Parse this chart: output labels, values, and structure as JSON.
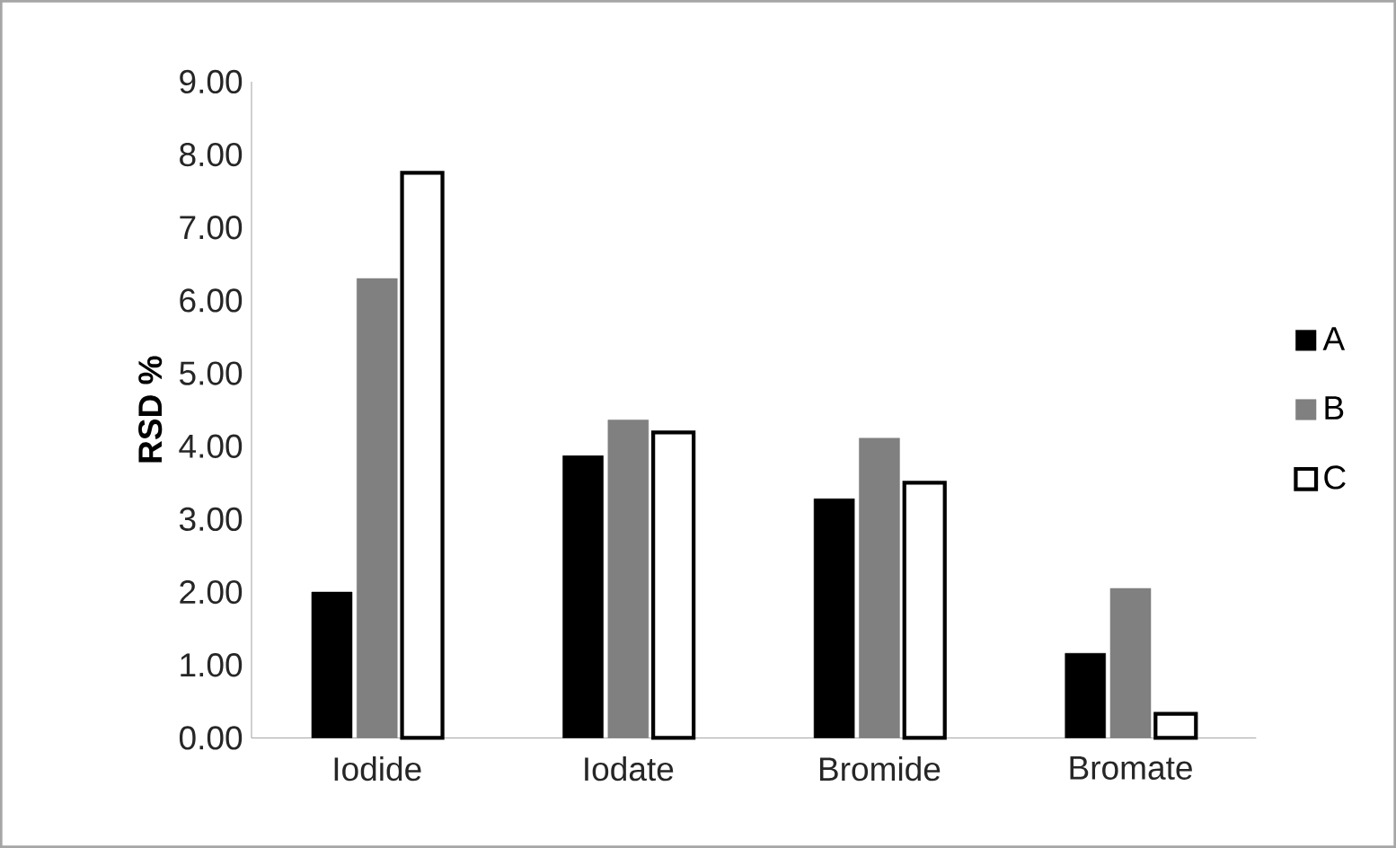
{
  "chart_data": {
    "type": "bar",
    "ylabel": "RSD %",
    "categories": [
      "Iodide",
      "Iodate",
      "Bromide",
      "Bromate"
    ],
    "series": [
      {
        "name": "A",
        "color": "#000000",
        "values": [
          2.0,
          3.87,
          3.28,
          1.16
        ]
      },
      {
        "name": "B",
        "color": "#808080",
        "values": [
          6.3,
          4.36,
          4.11,
          2.05
        ]
      },
      {
        "name": "C",
        "color": "#ffffff",
        "values": [
          7.75,
          4.19,
          3.5,
          0.33
        ]
      }
    ],
    "ylim": [
      0,
      9
    ],
    "yticks": [
      {
        "value": 0,
        "label": "0.00"
      },
      {
        "value": 1,
        "label": "1.00"
      },
      {
        "value": 2,
        "label": "2.00"
      },
      {
        "value": 3,
        "label": "3.00"
      },
      {
        "value": 4,
        "label": "4.00"
      },
      {
        "value": 5,
        "label": "5.00"
      },
      {
        "value": 6,
        "label": "6.00"
      },
      {
        "value": 7,
        "label": "7.00"
      },
      {
        "value": 8,
        "label": "8.00"
      },
      {
        "value": 9,
        "label": "9.00"
      }
    ],
    "grid": false,
    "legend": "right"
  }
}
